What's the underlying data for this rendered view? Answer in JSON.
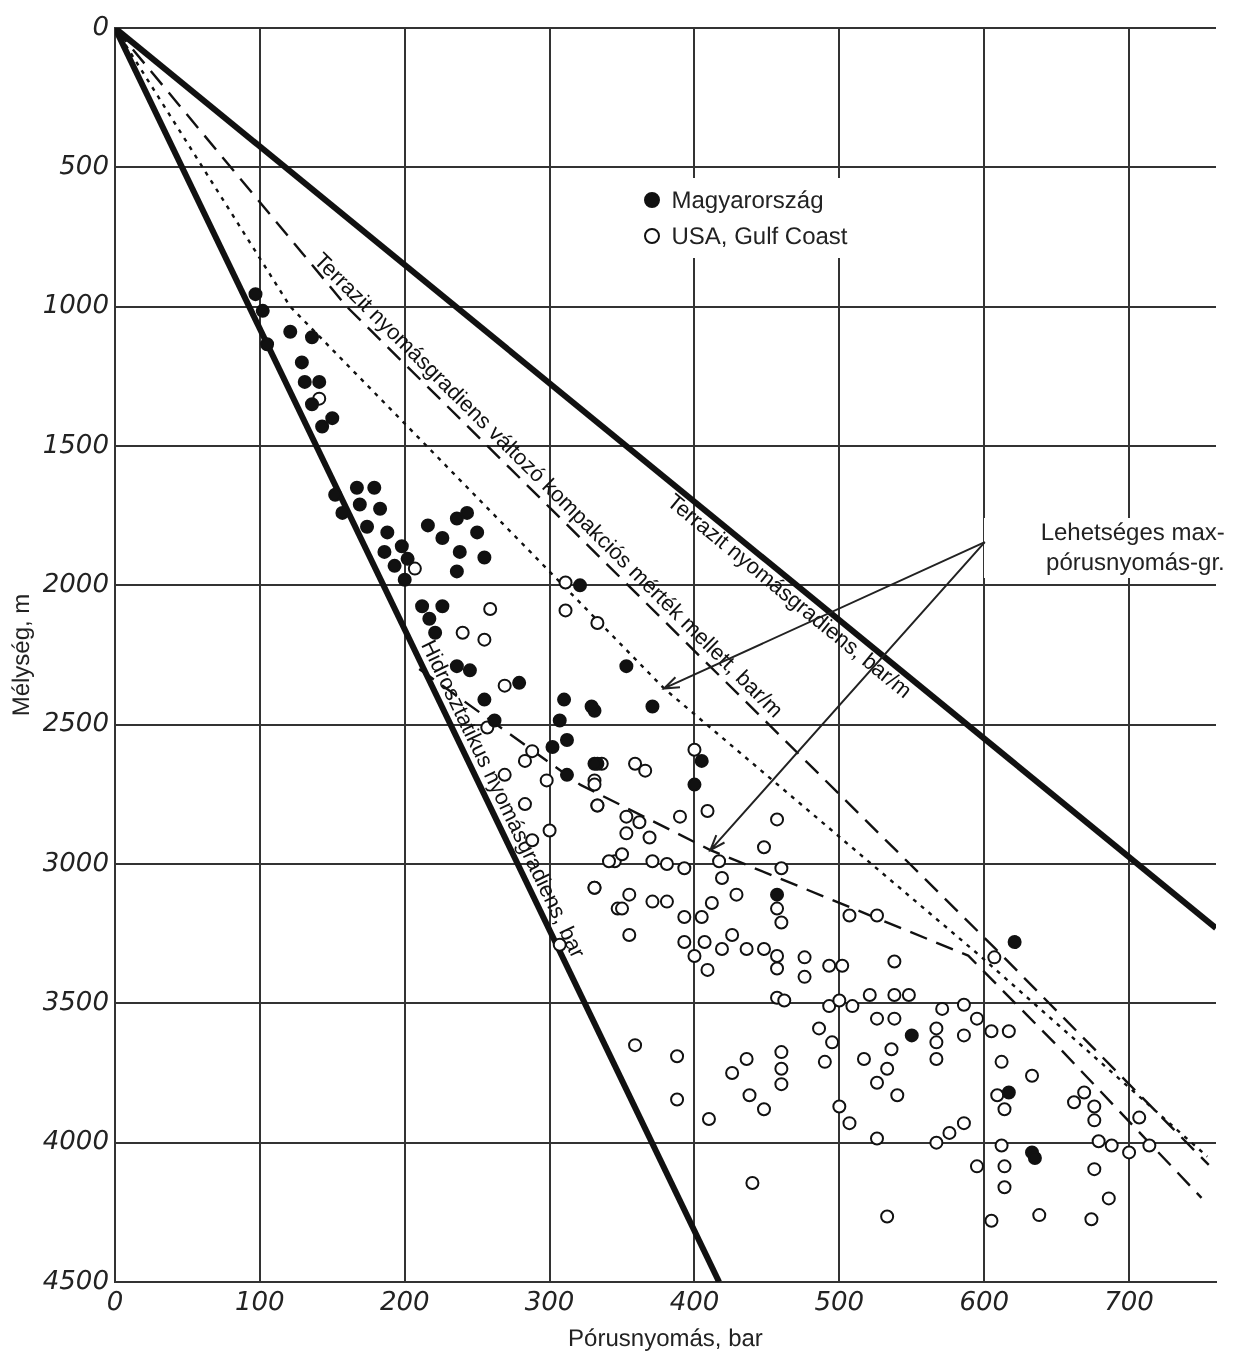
{
  "chart_data": {
    "type": "scatter",
    "xlabel": "Pórusnyomás, bar",
    "ylabel": "Mélység, m",
    "xlim": [
      0,
      760
    ],
    "ylim": [
      4500,
      0
    ],
    "xticks": [
      0,
      100,
      200,
      300,
      400,
      500,
      600,
      700
    ],
    "yticks": [
      0,
      500,
      1000,
      1500,
      2000,
      2500,
      3000,
      3500,
      4000,
      4500
    ],
    "grid": true,
    "legend": "top",
    "marker": "circle",
    "annotations": [
      "Lehetséges max-pórusnyomás-gr."
    ],
    "series": [
      {
        "name": "Magyarország",
        "color": "#111111",
        "x": [
          97,
          102,
          105,
          121,
          136,
          129,
          131,
          141,
          136,
          150,
          143,
          152,
          167,
          179,
          157,
          169,
          183,
          174,
          188,
          198,
          186,
          193,
          202,
          200,
          216,
          236,
          243,
          226,
          238,
          250,
          255,
          236,
          212,
          226,
          217,
          221,
          236,
          321,
          245,
          255,
          262,
          307,
          312,
          302,
          312,
          310,
          331,
          333,
          279,
          353,
          329,
          371,
          331,
          405,
          400,
          457,
          621,
          550,
          617,
          633,
          635
        ],
        "values": [
          955,
          1015,
          1135,
          1090,
          1110,
          1200,
          1270,
          1270,
          1350,
          1400,
          1430,
          1675,
          1650,
          1650,
          1740,
          1710,
          1725,
          1790,
          1810,
          1860,
          1880,
          1930,
          1905,
          1980,
          1785,
          1760,
          1740,
          1830,
          1880,
          1810,
          1900,
          1950,
          2075,
          2075,
          2120,
          2170,
          2290,
          2000,
          2305,
          2410,
          2485,
          2485,
          2555,
          2580,
          2680,
          2410,
          2450,
          2640,
          2350,
          2290,
          2435,
          2435,
          2640,
          2630,
          2715,
          3110,
          3280,
          3615,
          3820,
          4035,
          4055
        ]
      },
      {
        "name": "USA, Gulf Coast",
        "color": "#ffffff",
        "x": [
          311,
          311,
          333,
          259,
          240,
          255,
          207,
          141,
          269,
          257,
          269,
          283,
          288,
          298,
          283,
          288,
          300,
          331,
          307,
          331,
          333,
          345,
          347,
          336,
          359,
          366,
          331,
          333,
          353,
          362,
          353,
          369,
          390,
          400,
          409,
          341,
          350,
          371,
          381,
          393,
          417,
          419,
          331,
          355,
          371,
          381,
          350,
          393,
          405,
          412,
          429,
          355,
          393,
          407,
          400,
          419,
          409,
          426,
          436,
          448,
          457,
          457,
          448,
          460,
          457,
          457,
          460,
          457,
          462,
          476,
          476,
          493,
          502,
          507,
          526,
          538,
          493,
          500,
          509,
          521,
          526,
          538,
          548,
          538,
          571,
          586,
          595,
          567,
          567,
          586,
          605,
          617,
          612,
          633,
          609,
          614,
          486,
          495,
          490,
          517,
          536,
          533,
          526,
          540,
          500,
          507,
          526,
          567,
          567,
          576,
          586,
          595,
          612,
          614,
          614,
          605,
          638,
          674,
          676,
          686,
          662,
          669,
          676,
          676,
          679,
          688,
          700,
          707,
          714,
          533,
          440,
          410,
          388,
          388,
          359,
          426,
          436,
          438,
          448,
          460,
          460,
          460,
          607
        ],
        "values": [
          1990,
          2090,
          2135,
          2085,
          2170,
          2195,
          1940,
          1330,
          2360,
          2510,
          2680,
          2630,
          2595,
          2700,
          2785,
          2915,
          2880,
          3085,
          3290,
          2700,
          2790,
          2990,
          3160,
          2640,
          2640,
          2665,
          2715,
          2790,
          2830,
          2850,
          2890,
          2905,
          2830,
          2590,
          2810,
          2990,
          2965,
          2990,
          3000,
          3015,
          2990,
          3050,
          3085,
          3110,
          3135,
          3135,
          3160,
          3190,
          3190,
          3140,
          3110,
          3255,
          3280,
          3280,
          3330,
          3305,
          3380,
          3255,
          3305,
          3305,
          3330,
          3375,
          2940,
          3015,
          2840,
          3160,
          3210,
          3480,
          3490,
          3335,
          3405,
          3365,
          3365,
          3185,
          3185,
          3350,
          3510,
          3490,
          3510,
          3470,
          3555,
          3470,
          3470,
          3555,
          3520,
          3505,
          3555,
          3590,
          3640,
          3615,
          3600,
          3600,
          3710,
          3760,
          3830,
          3880,
          3590,
          3640,
          3710,
          3700,
          3665,
          3735,
          3785,
          3830,
          3870,
          3930,
          3985,
          3700,
          4000,
          3965,
          3930,
          4085,
          4010,
          4085,
          4160,
          4280,
          4260,
          4275,
          4095,
          4200,
          3855,
          3820,
          3870,
          3920,
          3995,
          4010,
          4035,
          3910,
          4010,
          4265,
          4145,
          3915,
          3690,
          3845,
          3650,
          3750,
          3700,
          3830,
          3880,
          3675,
          3735,
          3790,
          3335
        ]
      },
      {
        "name": "Terrazit nyomásgradiens, bar/m",
        "type": "line",
        "color": "#111111",
        "line_style": "solid",
        "marker": "none",
        "x": [
          0,
          760
        ],
        "values": [
          0,
          3230
        ]
      },
      {
        "name": "Hidrosztatikus nyomásgradiens, bar",
        "type": "line",
        "color": "#111111",
        "line_style": "solid",
        "marker": "none",
        "x": [
          0,
          417
        ],
        "values": [
          0,
          4500
        ]
      },
      {
        "name": "Terrazit nyomásgradiens változó kompakciós mérték mellett, bar/m",
        "type": "line",
        "color": "#111111",
        "line_style": "dashed",
        "marker": "none",
        "x": [
          0,
          160,
          350,
          607,
          755
        ],
        "values": [
          0,
          1000,
          1978,
          3300,
          4080
        ]
      },
      {
        "type": "line",
        "color": "#111111",
        "line_style": "dotted",
        "marker": "none",
        "x": [
          0,
          121,
          379,
          597,
          754
        ],
        "values": [
          0,
          1000,
          2370,
          3329,
          4050
        ]
      },
      {
        "type": "line",
        "color": "#111111",
        "line_style": "dashed",
        "marker": "none",
        "x": [
          210,
          321,
          411,
          589,
          650,
          750
        ],
        "values": [
          2300,
          2715,
          2950,
          3329,
          3650,
          4198
        ]
      }
    ]
  }
}
